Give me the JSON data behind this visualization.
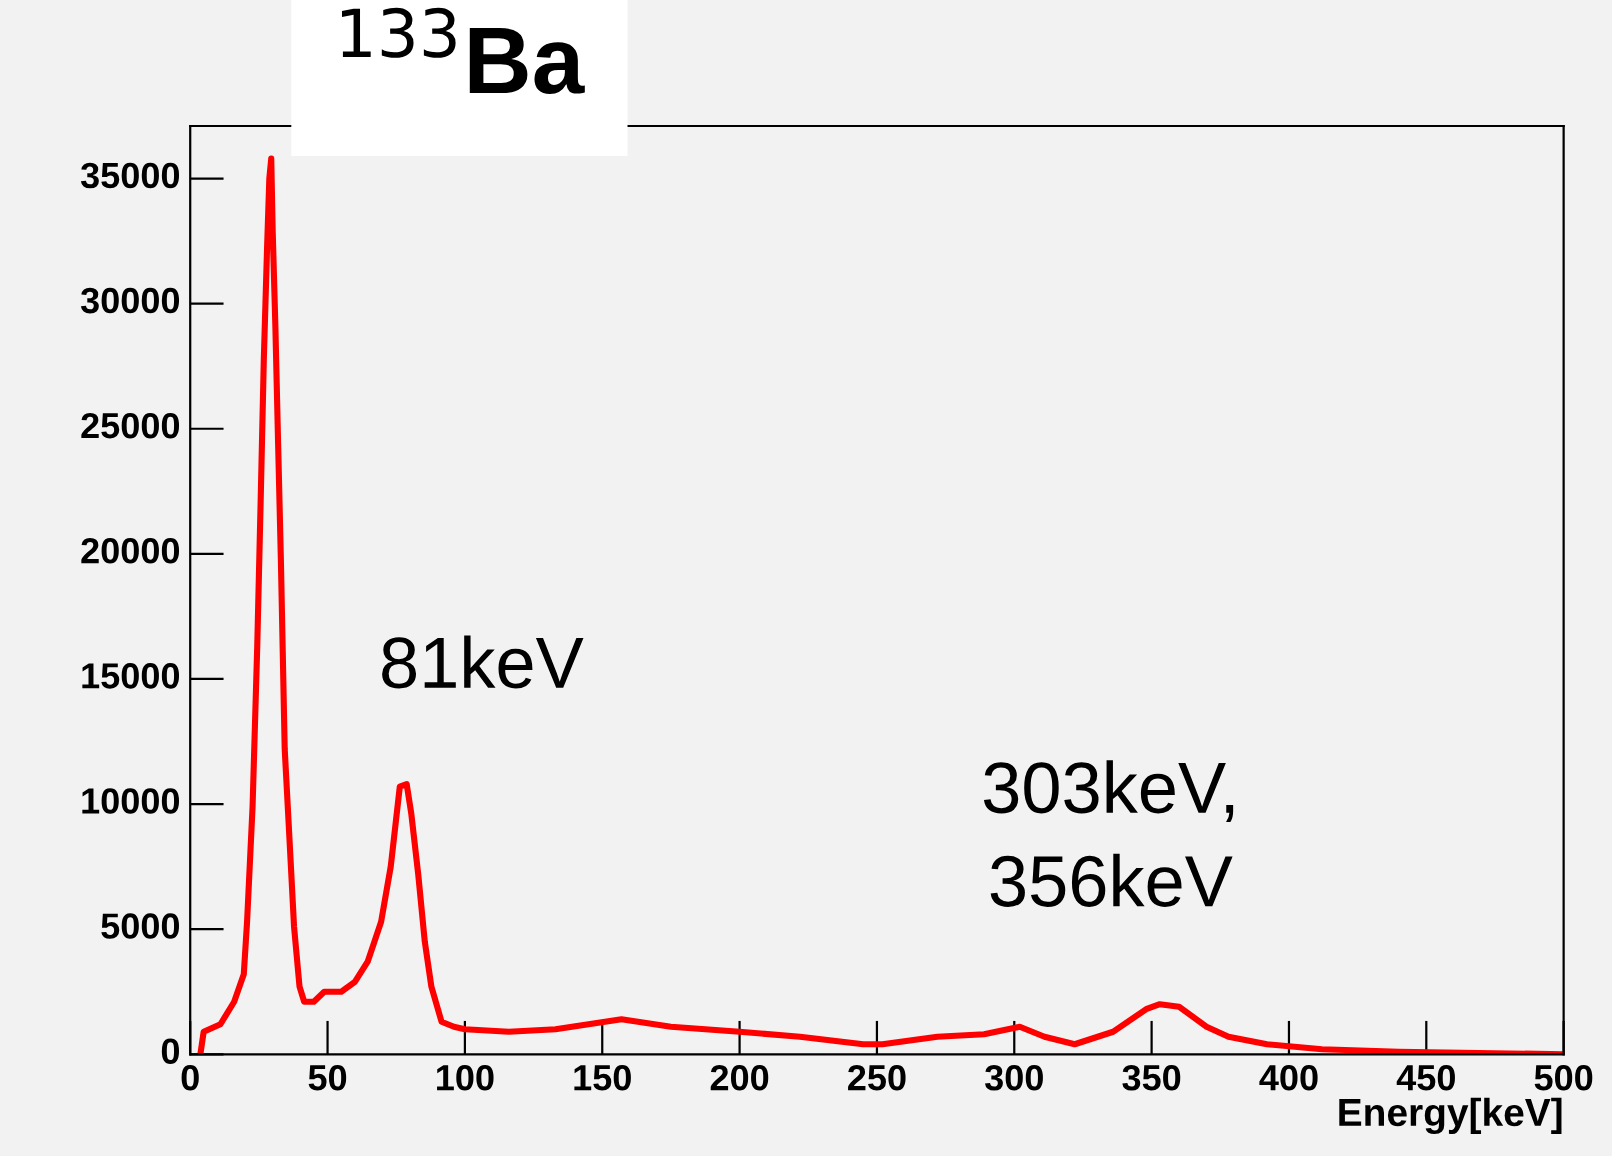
{
  "chart_data": {
    "type": "line",
    "title": "$^{133}$Ba",
    "xlabel": "Energy[keV]",
    "x": [
      3.7,
      4.9,
      11,
      16,
      19.5,
      20.7,
      22.7,
      24.4,
      25.6,
      26.8,
      28,
      28.8,
      29.5,
      30,
      31,
      32,
      33,
      34.4,
      35.9,
      37.8,
      39.8,
      41.5,
      45,
      48.8,
      55,
      60,
      64.6,
      69.5,
      73,
      76.3,
      78.8,
      80.5,
      83,
      85.4,
      87.8,
      91.5,
      96,
      100,
      116,
      133,
      157,
      175,
      200,
      222,
      245,
      252,
      272,
      289,
      302,
      311,
      322,
      336,
      348,
      353,
      360,
      370,
      378,
      392,
      412,
      440,
      500
    ],
    "series": [
      {
        "color": "#ff0000",
        "values": [
          0,
          900,
          1200,
          2100,
          3200,
          5300,
          9900,
          16300,
          21900,
          27800,
          32300,
          35000,
          35800,
          33000,
          29100,
          24400,
          19800,
          12200,
          9100,
          5100,
          2700,
          2100,
          2100,
          2500,
          2500,
          2900,
          3700,
          5300,
          7500,
          10700,
          10800,
          9600,
          7200,
          4500,
          2700,
          1300,
          1100,
          1000,
          900,
          1000,
          1400,
          1100,
          900,
          700,
          400,
          400,
          700,
          800,
          1100,
          700,
          400,
          900,
          1800,
          2000,
          1900,
          1100,
          700,
          400,
          200,
          100,
          0
        ]
      }
    ],
    "xlim": [
      0,
      500
    ],
    "xticks": [
      0,
      50,
      100,
      150,
      200,
      250,
      300,
      350,
      400,
      450,
      500
    ],
    "ylim": [
      0,
      37100
    ],
    "yticks": [
      0,
      5000,
      10000,
      15000,
      20000,
      25000,
      30000,
      35000
    ],
    "annotations": [
      "81keV",
      "303keV,\n356keV"
    ],
    "grid": false,
    "legend": false
  }
}
